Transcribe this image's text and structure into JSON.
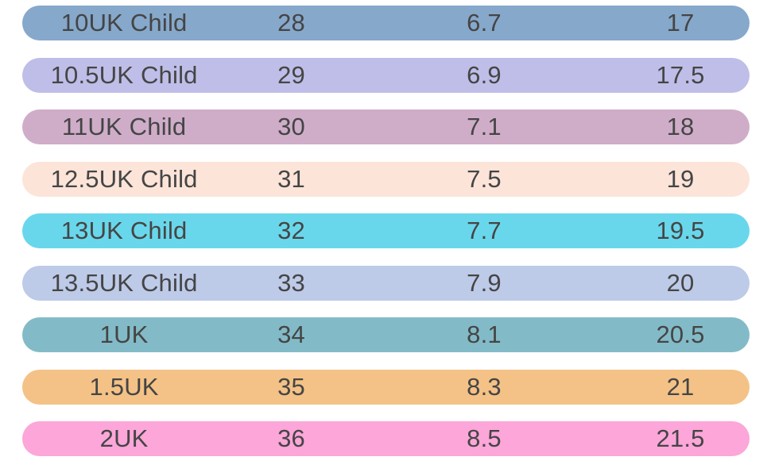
{
  "page": {
    "background_color": "#ffffff",
    "text_color": "#454545"
  },
  "chart_data": {
    "type": "table",
    "description": "Shoe size conversion chart rows (UK child/adult size, EU size, inches, cm)",
    "grid": "off",
    "rows": [
      {
        "cells": [
          "10UK Child",
          "28",
          "6.7",
          "17"
        ],
        "color": "#86a8cb"
      },
      {
        "cells": [
          "10.5UK Child",
          "29",
          "6.9",
          "17.5"
        ],
        "color": "#bfbee8"
      },
      {
        "cells": [
          "11UK Child",
          "30",
          "7.1",
          "18"
        ],
        "color": "#cfadc9"
      },
      {
        "cells": [
          "12.5UK Child",
          "31",
          "7.5",
          "19"
        ],
        "color": "#fce4d9"
      },
      {
        "cells": [
          "13UK Child",
          "32",
          "7.7",
          "19.5"
        ],
        "color": "#69d7eb"
      },
      {
        "cells": [
          "13.5UK Child",
          "33",
          "7.9",
          "20"
        ],
        "color": "#bdcae8"
      },
      {
        "cells": [
          "1UK",
          "34",
          "8.1",
          "20.5"
        ],
        "color": "#82bbc7"
      },
      {
        "cells": [
          "1.5UK",
          "35",
          "8.3",
          "21"
        ],
        "color": "#f4c286"
      },
      {
        "cells": [
          "2UK",
          "36",
          "8.5",
          "21.5"
        ],
        "color": "#fca6d9"
      }
    ]
  }
}
